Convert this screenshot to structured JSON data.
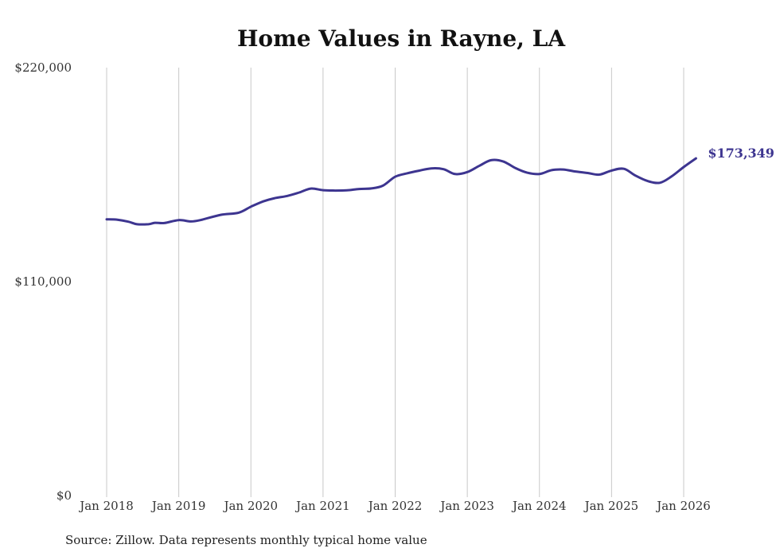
{
  "chart_data": {
    "type": "line",
    "title": "Home Values in Rayne, LA",
    "xlabel": "",
    "ylabel": "",
    "ylim": [
      0,
      220000
    ],
    "yticks": [
      {
        "value": 0,
        "label": "$0"
      },
      {
        "value": 110000,
        "label": "$110,000"
      },
      {
        "value": 220000,
        "label": "$220,000"
      }
    ],
    "xticks": [
      {
        "value": 2018.0,
        "label": "Jan 2018"
      },
      {
        "value": 2019.0,
        "label": "Jan 2019"
      },
      {
        "value": 2020.0,
        "label": "Jan 2020"
      },
      {
        "value": 2021.0,
        "label": "Jan 2021"
      },
      {
        "value": 2022.0,
        "label": "Jan 2022"
      },
      {
        "value": 2023.0,
        "label": "Jan 2023"
      },
      {
        "value": 2024.0,
        "label": "Jan 2024"
      },
      {
        "value": 2025.0,
        "label": "Jan 2025"
      },
      {
        "value": 2026.0,
        "label": "Jan 2026"
      }
    ],
    "xlim": [
      2018.0,
      2026.0
    ],
    "grid": "vertical",
    "series": [
      {
        "name": "Typical home value",
        "color": "#3d3590",
        "end_label": "$173,349",
        "points": [
          [
            2018.0,
            142000
          ],
          [
            2018.15,
            141800
          ],
          [
            2018.3,
            140800
          ],
          [
            2018.42,
            139500
          ],
          [
            2018.58,
            139500
          ],
          [
            2018.67,
            140200
          ],
          [
            2018.8,
            140100
          ],
          [
            2019.0,
            141600
          ],
          [
            2019.17,
            140900
          ],
          [
            2019.3,
            141600
          ],
          [
            2019.58,
            144300
          ],
          [
            2019.83,
            145400
          ],
          [
            2020.0,
            148500
          ],
          [
            2020.17,
            151200
          ],
          [
            2020.33,
            152900
          ],
          [
            2020.5,
            154000
          ],
          [
            2020.67,
            155800
          ],
          [
            2020.83,
            157800
          ],
          [
            2021.0,
            157000
          ],
          [
            2021.17,
            156800
          ],
          [
            2021.33,
            156900
          ],
          [
            2021.5,
            157600
          ],
          [
            2021.67,
            157900
          ],
          [
            2021.83,
            159300
          ],
          [
            2022.0,
            163900
          ],
          [
            2022.17,
            165700
          ],
          [
            2022.33,
            167000
          ],
          [
            2022.5,
            168200
          ],
          [
            2022.67,
            167800
          ],
          [
            2022.83,
            165300
          ],
          [
            2023.0,
            166300
          ],
          [
            2023.17,
            169600
          ],
          [
            2023.33,
            172400
          ],
          [
            2023.5,
            171700
          ],
          [
            2023.67,
            168300
          ],
          [
            2023.83,
            166000
          ],
          [
            2024.0,
            165300
          ],
          [
            2024.17,
            167300
          ],
          [
            2024.33,
            167600
          ],
          [
            2024.5,
            166600
          ],
          [
            2024.67,
            165800
          ],
          [
            2024.83,
            165000
          ],
          [
            2025.0,
            167100
          ],
          [
            2025.17,
            168000
          ],
          [
            2025.33,
            164500
          ],
          [
            2025.5,
            161700
          ],
          [
            2025.67,
            160800
          ],
          [
            2025.83,
            164000
          ],
          [
            2026.0,
            168900
          ],
          [
            2026.17,
            173349
          ]
        ]
      }
    ],
    "source": "Source: Zillow. Data represents monthly typical home value"
  }
}
